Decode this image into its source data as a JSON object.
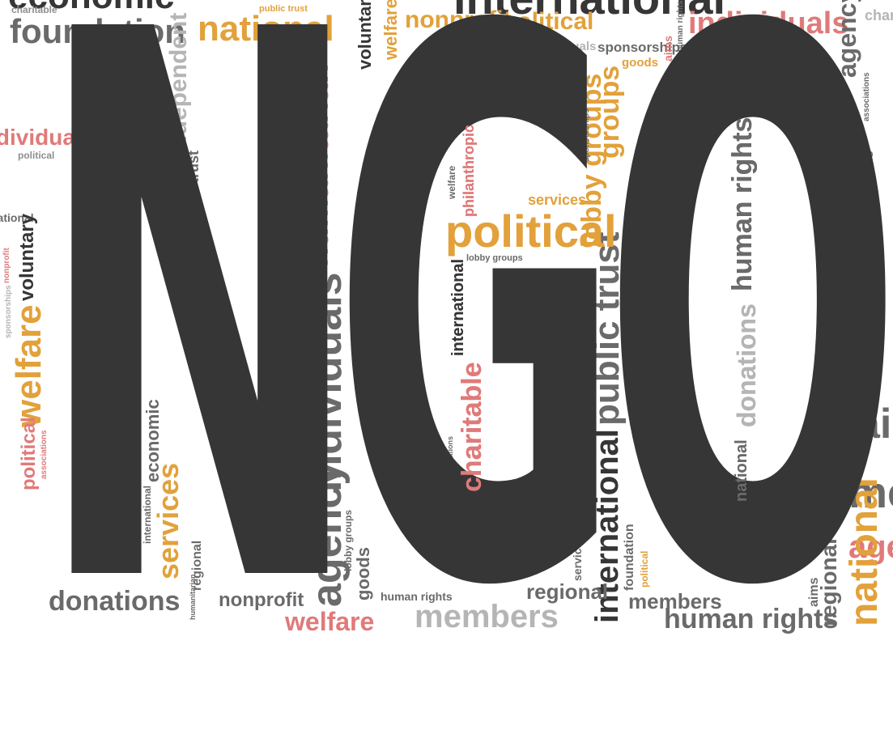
{
  "headline": "NGO",
  "letters": [
    "N",
    "G",
    "O"
  ],
  "palette": {
    "dark": "#363636",
    "gray": "#8e8e8e",
    "light_gray": "#b5b5b5",
    "pink": "#e07a7a",
    "orange": "#e2a13a"
  },
  "words": {
    "foundation": "foundation",
    "charitable": "charitable",
    "national": "national",
    "nonprofit": "nonprofit",
    "political": "political",
    "individuals": "individuals",
    "agency": "agency",
    "aims": "aims",
    "human_rights": "human rights",
    "sponsorships": "sponsorships",
    "goods": "goods",
    "public_trust": "public trust",
    "independent": "independent",
    "social": "social",
    "humanitarian": "humanitarian",
    "welfare": "welfare",
    "voluntary": "voluntary",
    "members": "members",
    "philanthropic": "philanthropic",
    "services": "services",
    "lobby_groups": "lobby groups",
    "international": "international",
    "donations": "donations",
    "economic": "economic",
    "regional": "regional",
    "associations": "associations",
    "groups": "groups"
  }
}
